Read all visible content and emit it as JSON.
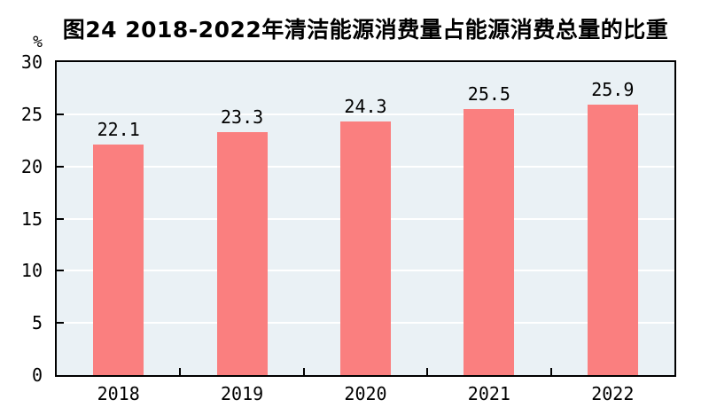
{
  "chart_data": {
    "type": "bar",
    "title": "图24  2018-2022年清洁能源消费量占能源消费总量的比重",
    "unit_label": "%",
    "categories": [
      "2018",
      "2019",
      "2020",
      "2021",
      "2022"
    ],
    "values": [
      22.1,
      23.3,
      24.3,
      25.5,
      25.9
    ],
    "data_labels": [
      "22.1",
      "23.3",
      "24.3",
      "25.5",
      "25.9"
    ],
    "xlabel": "",
    "ylabel": "%",
    "ylim": [
      0,
      30
    ],
    "yticks": [
      0,
      5,
      10,
      15,
      20,
      25,
      30
    ],
    "grid": true,
    "legend": "none",
    "colors": {
      "bar_fill": "#fa7f7f",
      "plot_background": "#eaf1f5",
      "gridline": "#ffffff",
      "axis": "#000000",
      "text": "#000000",
      "page_background": "#ffffff"
    }
  }
}
